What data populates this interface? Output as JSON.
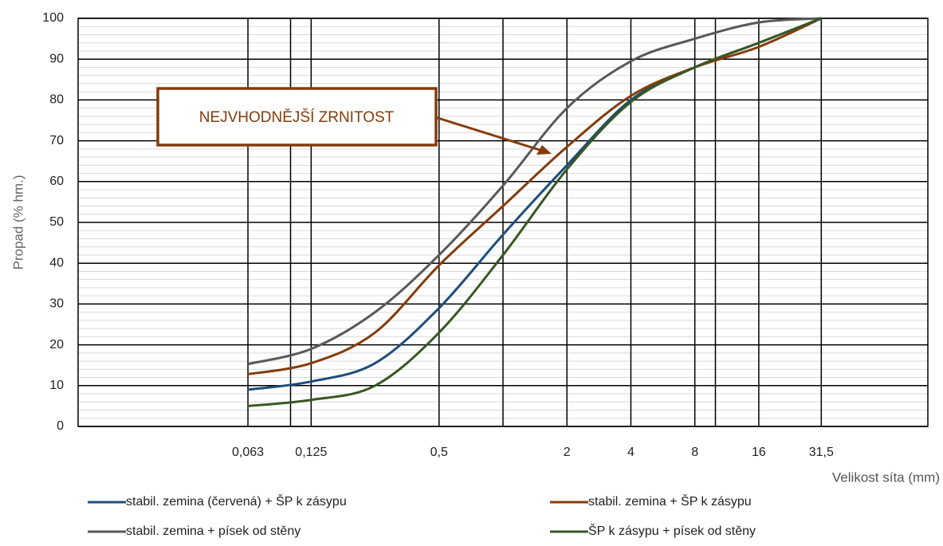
{
  "chart_data": {
    "type": "line",
    "x_label": "Velikost síta (mm)",
    "y_label": "Propad (% hm.)",
    "x": [
      0.063,
      0.125,
      0.25,
      0.5,
      1,
      2,
      4,
      8,
      16,
      31.5
    ],
    "series": [
      {
        "name": "stabil. zemina (červená) + ŠP k zásypu",
        "color": "#1f4e79",
        "values": [
          9,
          11,
          15.5,
          29,
          47,
          64,
          80,
          88,
          94,
          100
        ]
      },
      {
        "name": "stabil. zemina + ŠP k zásypu",
        "color": "#843c0c",
        "values": [
          12.8,
          15.5,
          23,
          39.5,
          54,
          68.5,
          81,
          88,
          93,
          100
        ]
      },
      {
        "name": "stabil. zemina + písek od stěny",
        "color": "#595959",
        "values": [
          15.3,
          19,
          28,
          42,
          59,
          78,
          89.5,
          95,
          99,
          100
        ]
      },
      {
        "name": "ŠP k zásypu + písek od stěny",
        "color": "#385723",
        "values": [
          5,
          6.5,
          10,
          23,
          42,
          63,
          79.5,
          88,
          94,
          100
        ]
      }
    ],
    "xscale": "log",
    "xlim": [
      0.01,
      100
    ],
    "xticks": [
      {
        "value": 0.063,
        "label": "0,063"
      },
      {
        "value": 0.125,
        "label": "0,125"
      },
      {
        "value": 0.5,
        "label": "0,5"
      },
      2,
      4,
      8,
      16,
      {
        "value": 31.5,
        "label": "31,5"
      }
    ],
    "x_gridlines": [
      0.1,
      1,
      10
    ],
    "ylim": [
      0,
      100
    ],
    "yticks": [
      0,
      10,
      20,
      30,
      40,
      50,
      60,
      70,
      80,
      90,
      100
    ],
    "y_minor_step": 2,
    "grid": true,
    "legend": "bottom",
    "annotation": {
      "text": "NEJVHODNĚJŠÍ ZRNITOST",
      "color": "#843c0c"
    }
  }
}
